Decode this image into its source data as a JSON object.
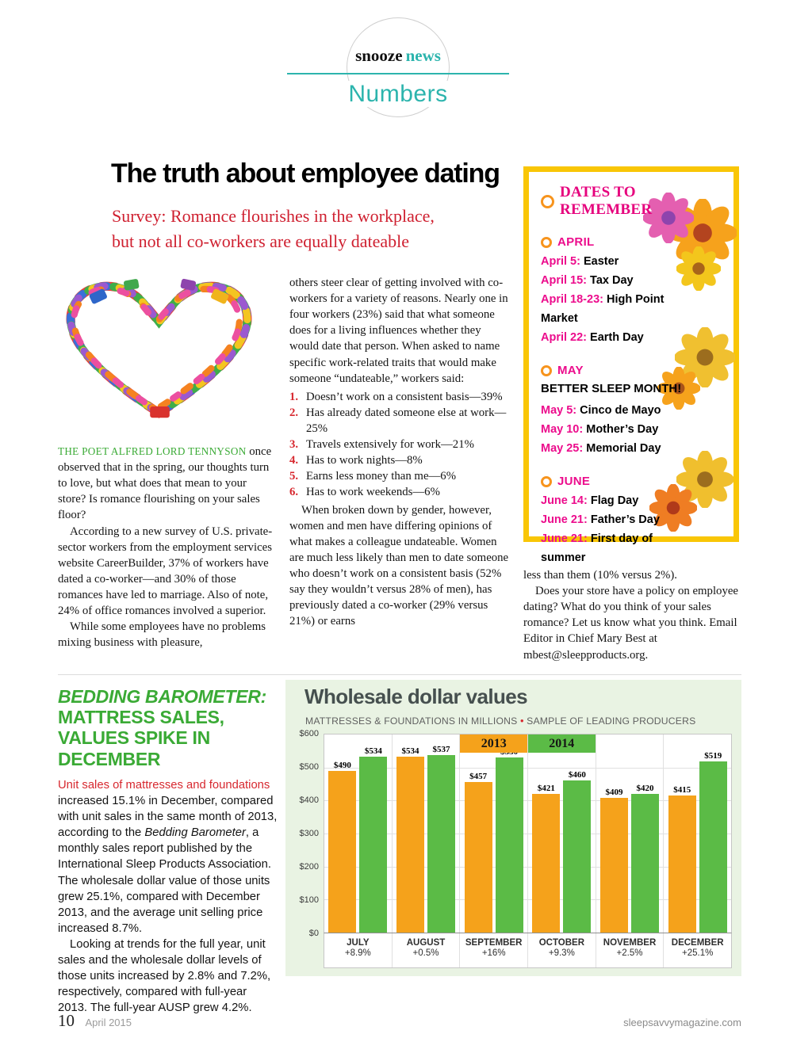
{
  "logo": {
    "snooze": "snooze",
    "news": "news",
    "numbers": "Numbers"
  },
  "main_article": {
    "title": "The truth about employee dating",
    "subtitle1": "Survey: Romance flourishes in the workplace,",
    "subtitle2": "but not all co-workers are equally dateable",
    "col1": {
      "caps": "THE POET ALFRED LORD TENNYSON",
      "p1": "once observed that in the spring, our thoughts turn to love, but what does that mean to your store? Is romance flourishing on your sales floor?",
      "p2": "According to a new survey of U.S. private-sector workers from the employment services website CareerBuilder, 37% of workers have dated a co-worker—and 30% of those romances have led to marriage. Also of note, 24% of office romances involved a superior.",
      "p3": "While some employees have no problems mixing business with pleasure,"
    },
    "col2": {
      "p1": "others steer clear of getting involved with co-workers for a variety of reasons. Nearly one in four workers (23%) said that what someone does for a living influences whether they would date that person. When asked to name specific work-related traits that would make someone “undateable,” workers said:",
      "p2": "When broken down by gender, however, women and men have differing opinions of what makes a colleague undateable. Women are much less likely than men to date someone who doesn’t work on a consistent basis (52% say they wouldn’t versus 28% of men), has previously dated a co-worker (29% versus 21%) or earns"
    },
    "list": [
      "Doesn’t work on a consistent basis—39%",
      "Has already dated someone else at work—25%",
      "Travels extensively for work—21%",
      "Has to work nights—8%",
      "Earns less money than me—6%",
      "Has to work weekends—6%"
    ],
    "col3": {
      "p1": "less than them (10% versus 2%).",
      "p2": "Does your store have a policy on employee dating? What do you think of your sales romance? Let us know what you think. Email Editor in Chief Mary Best at mbest@sleepproducts.org."
    }
  },
  "dates_sidebar": {
    "title": "DATES TO REMEMBER",
    "sections": [
      {
        "month": "APRIL",
        "items": [
          {
            "date": "April 5:",
            "label": "Easter"
          },
          {
            "date": "April 15:",
            "label": "Tax Day"
          },
          {
            "date": "April 18-23:",
            "label": "High Point Market"
          },
          {
            "date": "April 22:",
            "label": "Earth Day"
          }
        ]
      },
      {
        "month": "MAY",
        "banner": "BETTER SLEEP MONTH!",
        "items": [
          {
            "date": "May 5:",
            "label": "Cinco de Mayo"
          },
          {
            "date": "May 10:",
            "label": "Mother’s Day"
          },
          {
            "date": "May 25:",
            "label": "Memorial Day"
          }
        ]
      },
      {
        "month": "JUNE",
        "items": [
          {
            "date": "June 14:",
            "label": "Flag Day"
          },
          {
            "date": "June 21:",
            "label": "Father’s Day"
          },
          {
            "date": "June 21:",
            "label": "First day of summer"
          }
        ]
      }
    ]
  },
  "barometer": {
    "title_italic": "BEDDING BAROMETER:",
    "title_rest": "MATTRESS SALES, VALUES SPIKE IN DECEMBER",
    "lead": "Unit sales of mattresses and foundations",
    "p1a": "increased 15.1% in December, compared with unit sales in the same month of 2013, according to the ",
    "term": "Bedding Barometer",
    "p1b": ", a monthly sales report published by the International Sleep Products Association. The wholesale dollar value of those units grew 25.1%, compared with December 2013, and the average unit selling price increased 8.7%.",
    "p2": "Looking at trends for the full year, unit sales and the wholesale dollar levels of those units increased by 2.8% and 7.2%, respectively, compared with full-year 2013. The full-year AUSP grew 4.2%."
  },
  "chart_data": {
    "type": "bar",
    "title": "Wholesale dollar values",
    "subtitle_left": "MATTRESSES & FOUNDATIONS IN MILLIONS",
    "subtitle_sep": "•",
    "subtitle_right": "SAMPLE OF LEADING PRODUCERS",
    "categories": [
      "JULY",
      "AUGUST",
      "SEPTEMBER",
      "OCTOBER",
      "NOVEMBER",
      "DECEMBER"
    ],
    "changes": [
      "+8.9%",
      "+0.5%",
      "+16%",
      "+9.3%",
      "+2.5%",
      "+25.1%"
    ],
    "series": [
      {
        "name": "2013",
        "color": "#f5a21b",
        "values": [
          490,
          534,
          457,
          421,
          409,
          415
        ]
      },
      {
        "name": "2014",
        "color": "#5bbb46",
        "values": [
          534,
          537,
          530,
          460,
          420,
          519
        ]
      }
    ],
    "y_ticks": [
      "$600",
      "$500",
      "$400",
      "$300",
      "$200",
      "$100",
      "$0"
    ],
    "ylim": [
      0,
      600
    ],
    "value_prefix": "$",
    "legend_position": "top-center",
    "grid": true
  },
  "footer": {
    "page_number": "10",
    "issue": "April 2015",
    "site": "sleepsavvymagazine.com"
  },
  "colors": {
    "accent_teal": "#2cb4ad",
    "magenta": "#e6007d",
    "green": "#3aaa35",
    "red": "#cf2030",
    "orange_ring": "#f7941d",
    "sidebar_yellow": "#f9c606",
    "bar_2013": "#f5a21b",
    "bar_2014": "#5bbb46",
    "chart_bg": "#e9f3e3"
  },
  "icons": {
    "ring-icon": "open circle ring",
    "flower-icon": "daisy flower",
    "paperclip-heart-image": "heart made of colorful paperclips",
    "bullet-separator": "red dot"
  }
}
